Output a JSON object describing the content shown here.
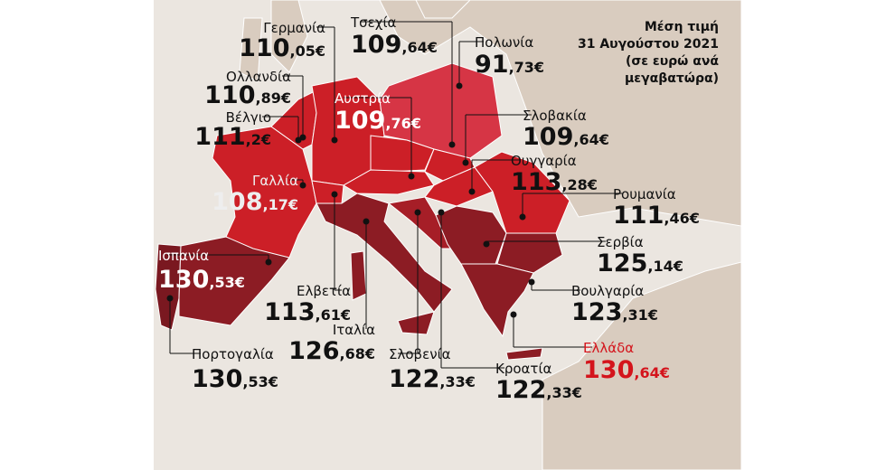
{
  "title": {
    "lines": [
      "Μέση τιμή",
      "31 Αυγούστου 2021",
      "(σε ευρώ ανά",
      "μεγαβατώρα)"
    ]
  },
  "countries": [
    {
      "name": "Γερμανία",
      "whole": "110",
      "fraction": ",05€"
    },
    {
      "name": "Τσεχία",
      "whole": "109",
      "fraction": ",64€"
    },
    {
      "name": "Πολωνία",
      "whole": "91",
      "fraction": ",73€"
    },
    {
      "name": "Ολλανδία",
      "whole": "110",
      "fraction": ",89€"
    },
    {
      "name": "Αυστρία",
      "whole": "109",
      "fraction": ",76€"
    },
    {
      "name": "Βέλγιο",
      "whole": "111",
      "fraction": ",2€"
    },
    {
      "name": "Σλοβακία",
      "whole": "109",
      "fraction": ",64€"
    },
    {
      "name": "Ουγγαρία",
      "whole": "113",
      "fraction": ",28€"
    },
    {
      "name": "Γαλλία",
      "whole": "108",
      "fraction": ",17€"
    },
    {
      "name": "Ρουμανία",
      "whole": "111",
      "fraction": ",46€"
    },
    {
      "name": "Ισπανία",
      "whole": "130",
      "fraction": ",53€"
    },
    {
      "name": "Σερβία",
      "whole": "125",
      "fraction": ",14€"
    },
    {
      "name": "Ελβετία",
      "whole": "113",
      "fraction": ",61€"
    },
    {
      "name": "Βουλγαρία",
      "whole": "123",
      "fraction": ",31€"
    },
    {
      "name": "Ιταλία",
      "whole": "126",
      "fraction": ",68€"
    },
    {
      "name": "Πορτογαλία",
      "whole": "130",
      "fraction": ",53€"
    },
    {
      "name": "Σλοβενία",
      "whole": "122",
      "fraction": ",33€"
    },
    {
      "name": "Κροατία",
      "whole": "122",
      "fraction": ",33€"
    },
    {
      "name": "Ελλάδα",
      "whole": "130",
      "fraction": ",64€"
    }
  ]
}
